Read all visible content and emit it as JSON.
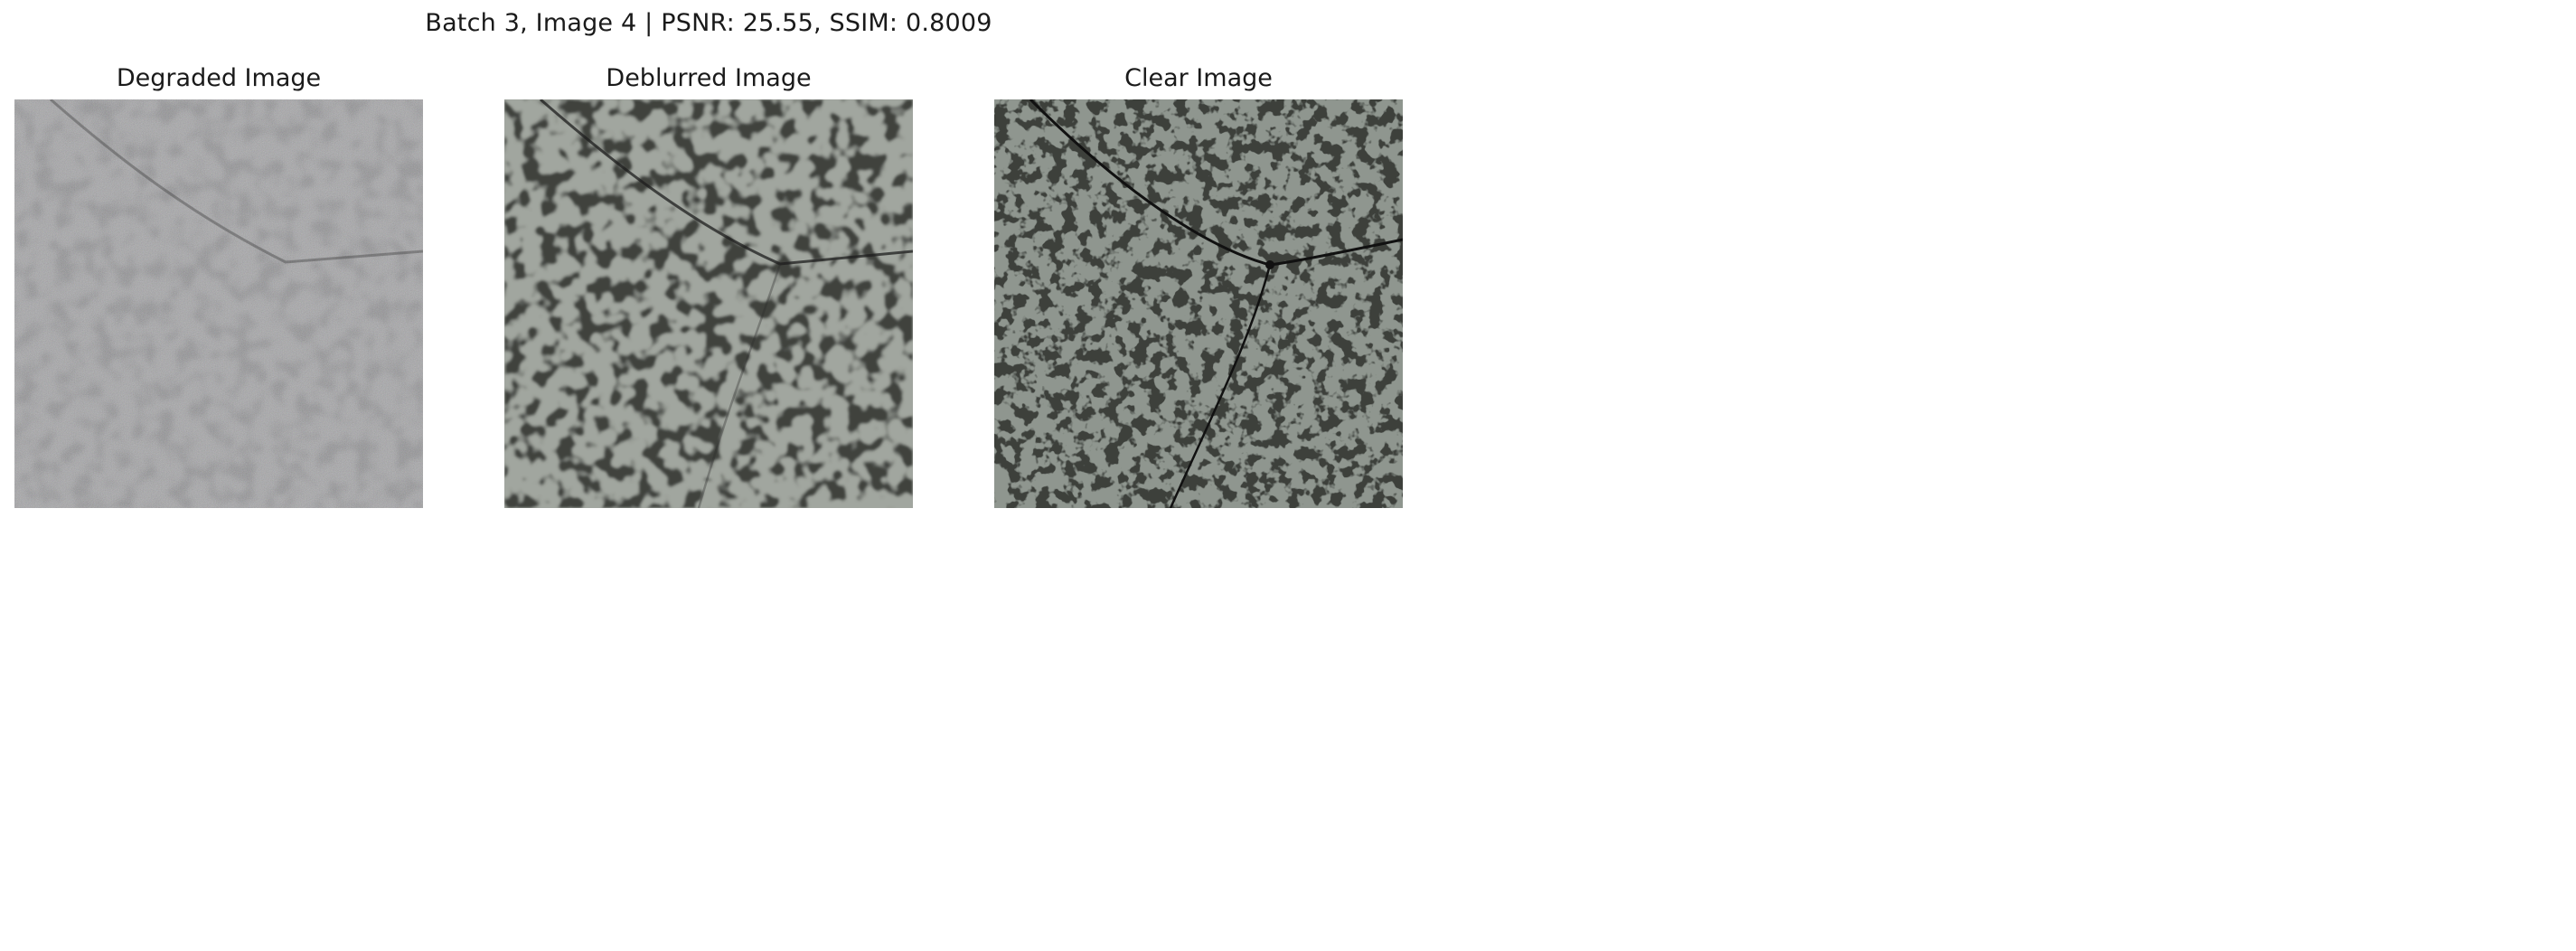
{
  "figure": {
    "suptitle": "Batch 3, Image 4 | PSNR: 25.55, SSIM: 0.8009"
  },
  "panels": [
    {
      "title": "Degraded Image"
    },
    {
      "title": "Deblurred Image"
    },
    {
      "title": "Clear Image"
    }
  ],
  "colors": {
    "degraded_base": "#8f8f8f",
    "degraded_dark": "#4a4a4a",
    "deblurred_base": "#9ea39c",
    "deblurred_dark": "#3f423e",
    "clear_base": "#8f968f",
    "clear_dark": "#3c3f3b",
    "crack": "#111111"
  }
}
